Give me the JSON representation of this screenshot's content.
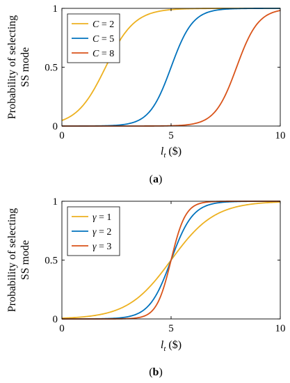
{
  "chart_data": [
    {
      "type": "line",
      "caption": "(a)",
      "xlabel_var": "l",
      "xlabel_sub": "t",
      "xlabel_unit": " ($)",
      "ylabel_lines": [
        "Probability of selecting",
        "SS mode"
      ],
      "xlim": [
        0,
        10
      ],
      "ylim": [
        0,
        1
      ],
      "xticks": [
        0,
        5,
        10
      ],
      "yticks": [
        0,
        0.5,
        1
      ],
      "legend_position": "top-left",
      "series": [
        {
          "name_var": "C",
          "name_val": " = 2",
          "color": "#EDB120",
          "center": 2,
          "slope": 1.5
        },
        {
          "name_var": "C",
          "name_val": " = 5",
          "color": "#0072BD",
          "center": 5,
          "slope": 2
        },
        {
          "name_var": "C",
          "name_val": " = 8",
          "color": "#D95319",
          "center": 8,
          "slope": 2
        }
      ]
    },
    {
      "type": "line",
      "caption": "(b)",
      "xlabel_var": "l",
      "xlabel_sub": "t",
      "xlabel_unit": " ($)",
      "ylabel_lines": [
        "Probability of selecting",
        "SS mode"
      ],
      "xlim": [
        0,
        10
      ],
      "ylim": [
        0,
        1
      ],
      "xticks": [
        0,
        5,
        10
      ],
      "yticks": [
        0,
        0.5,
        1
      ],
      "legend_position": "top-left",
      "series": [
        {
          "name_var": "γ",
          "name_val": " = 1",
          "color": "#EDB120",
          "center": 5,
          "slope": 1
        },
        {
          "name_var": "γ",
          "name_val": " = 2",
          "color": "#0072BD",
          "center": 5,
          "slope": 2
        },
        {
          "name_var": "γ",
          "name_val": " = 3",
          "color": "#D95319",
          "center": 5,
          "slope": 3
        }
      ]
    }
  ]
}
